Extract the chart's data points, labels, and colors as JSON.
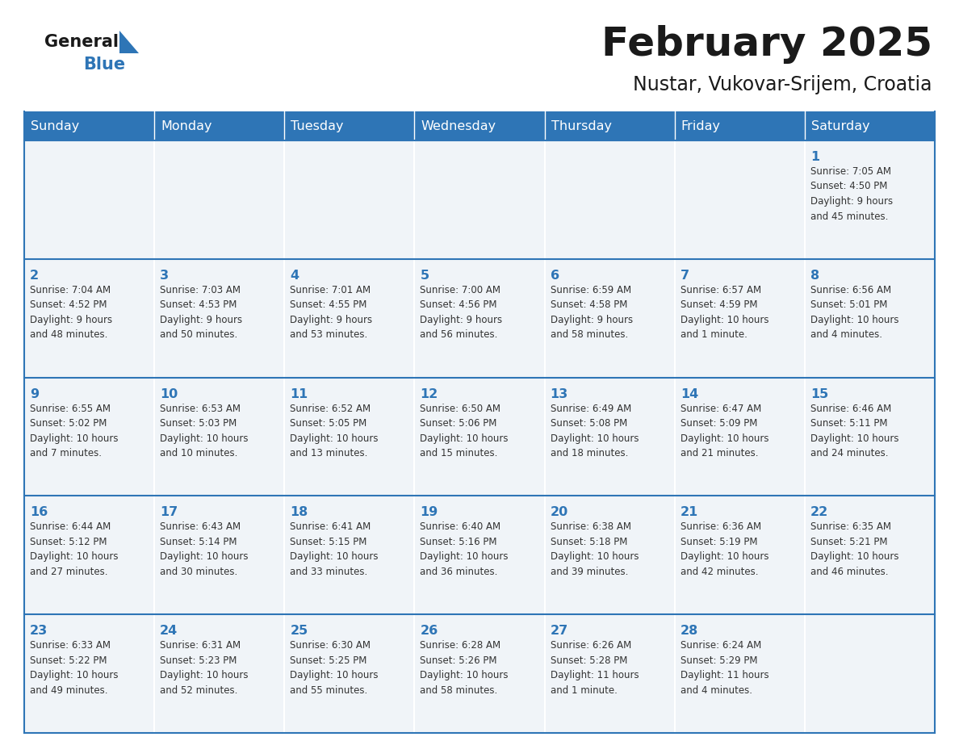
{
  "title": "February 2025",
  "subtitle": "Nustar, Vukovar-Srijem, Croatia",
  "days_of_week": [
    "Sunday",
    "Monday",
    "Tuesday",
    "Wednesday",
    "Thursday",
    "Friday",
    "Saturday"
  ],
  "header_bg": "#2E75B6",
  "header_text": "#FFFFFF",
  "cell_bg": "#F0F4F8",
  "border_color": "#2E75B6",
  "title_color": "#1a1a1a",
  "subtitle_color": "#1a1a1a",
  "day_num_color": "#2E75B6",
  "cell_text_color": "#333333",
  "logo_general_color": "#1a1a1a",
  "logo_blue_color": "#2E75B6",
  "calendar_data": [
    [
      {
        "day": 0,
        "info": ""
      },
      {
        "day": 0,
        "info": ""
      },
      {
        "day": 0,
        "info": ""
      },
      {
        "day": 0,
        "info": ""
      },
      {
        "day": 0,
        "info": ""
      },
      {
        "day": 0,
        "info": ""
      },
      {
        "day": 1,
        "info": "Sunrise: 7:05 AM\nSunset: 4:50 PM\nDaylight: 9 hours\nand 45 minutes."
      }
    ],
    [
      {
        "day": 2,
        "info": "Sunrise: 7:04 AM\nSunset: 4:52 PM\nDaylight: 9 hours\nand 48 minutes."
      },
      {
        "day": 3,
        "info": "Sunrise: 7:03 AM\nSunset: 4:53 PM\nDaylight: 9 hours\nand 50 minutes."
      },
      {
        "day": 4,
        "info": "Sunrise: 7:01 AM\nSunset: 4:55 PM\nDaylight: 9 hours\nand 53 minutes."
      },
      {
        "day": 5,
        "info": "Sunrise: 7:00 AM\nSunset: 4:56 PM\nDaylight: 9 hours\nand 56 minutes."
      },
      {
        "day": 6,
        "info": "Sunrise: 6:59 AM\nSunset: 4:58 PM\nDaylight: 9 hours\nand 58 minutes."
      },
      {
        "day": 7,
        "info": "Sunrise: 6:57 AM\nSunset: 4:59 PM\nDaylight: 10 hours\nand 1 minute."
      },
      {
        "day": 8,
        "info": "Sunrise: 6:56 AM\nSunset: 5:01 PM\nDaylight: 10 hours\nand 4 minutes."
      }
    ],
    [
      {
        "day": 9,
        "info": "Sunrise: 6:55 AM\nSunset: 5:02 PM\nDaylight: 10 hours\nand 7 minutes."
      },
      {
        "day": 10,
        "info": "Sunrise: 6:53 AM\nSunset: 5:03 PM\nDaylight: 10 hours\nand 10 minutes."
      },
      {
        "day": 11,
        "info": "Sunrise: 6:52 AM\nSunset: 5:05 PM\nDaylight: 10 hours\nand 13 minutes."
      },
      {
        "day": 12,
        "info": "Sunrise: 6:50 AM\nSunset: 5:06 PM\nDaylight: 10 hours\nand 15 minutes."
      },
      {
        "day": 13,
        "info": "Sunrise: 6:49 AM\nSunset: 5:08 PM\nDaylight: 10 hours\nand 18 minutes."
      },
      {
        "day": 14,
        "info": "Sunrise: 6:47 AM\nSunset: 5:09 PM\nDaylight: 10 hours\nand 21 minutes."
      },
      {
        "day": 15,
        "info": "Sunrise: 6:46 AM\nSunset: 5:11 PM\nDaylight: 10 hours\nand 24 minutes."
      }
    ],
    [
      {
        "day": 16,
        "info": "Sunrise: 6:44 AM\nSunset: 5:12 PM\nDaylight: 10 hours\nand 27 minutes."
      },
      {
        "day": 17,
        "info": "Sunrise: 6:43 AM\nSunset: 5:14 PM\nDaylight: 10 hours\nand 30 minutes."
      },
      {
        "day": 18,
        "info": "Sunrise: 6:41 AM\nSunset: 5:15 PM\nDaylight: 10 hours\nand 33 minutes."
      },
      {
        "day": 19,
        "info": "Sunrise: 6:40 AM\nSunset: 5:16 PM\nDaylight: 10 hours\nand 36 minutes."
      },
      {
        "day": 20,
        "info": "Sunrise: 6:38 AM\nSunset: 5:18 PM\nDaylight: 10 hours\nand 39 minutes."
      },
      {
        "day": 21,
        "info": "Sunrise: 6:36 AM\nSunset: 5:19 PM\nDaylight: 10 hours\nand 42 minutes."
      },
      {
        "day": 22,
        "info": "Sunrise: 6:35 AM\nSunset: 5:21 PM\nDaylight: 10 hours\nand 46 minutes."
      }
    ],
    [
      {
        "day": 23,
        "info": "Sunrise: 6:33 AM\nSunset: 5:22 PM\nDaylight: 10 hours\nand 49 minutes."
      },
      {
        "day": 24,
        "info": "Sunrise: 6:31 AM\nSunset: 5:23 PM\nDaylight: 10 hours\nand 52 minutes."
      },
      {
        "day": 25,
        "info": "Sunrise: 6:30 AM\nSunset: 5:25 PM\nDaylight: 10 hours\nand 55 minutes."
      },
      {
        "day": 26,
        "info": "Sunrise: 6:28 AM\nSunset: 5:26 PM\nDaylight: 10 hours\nand 58 minutes."
      },
      {
        "day": 27,
        "info": "Sunrise: 6:26 AM\nSunset: 5:28 PM\nDaylight: 11 hours\nand 1 minute."
      },
      {
        "day": 28,
        "info": "Sunrise: 6:24 AM\nSunset: 5:29 PM\nDaylight: 11 hours\nand 4 minutes."
      },
      {
        "day": 0,
        "info": ""
      }
    ]
  ]
}
